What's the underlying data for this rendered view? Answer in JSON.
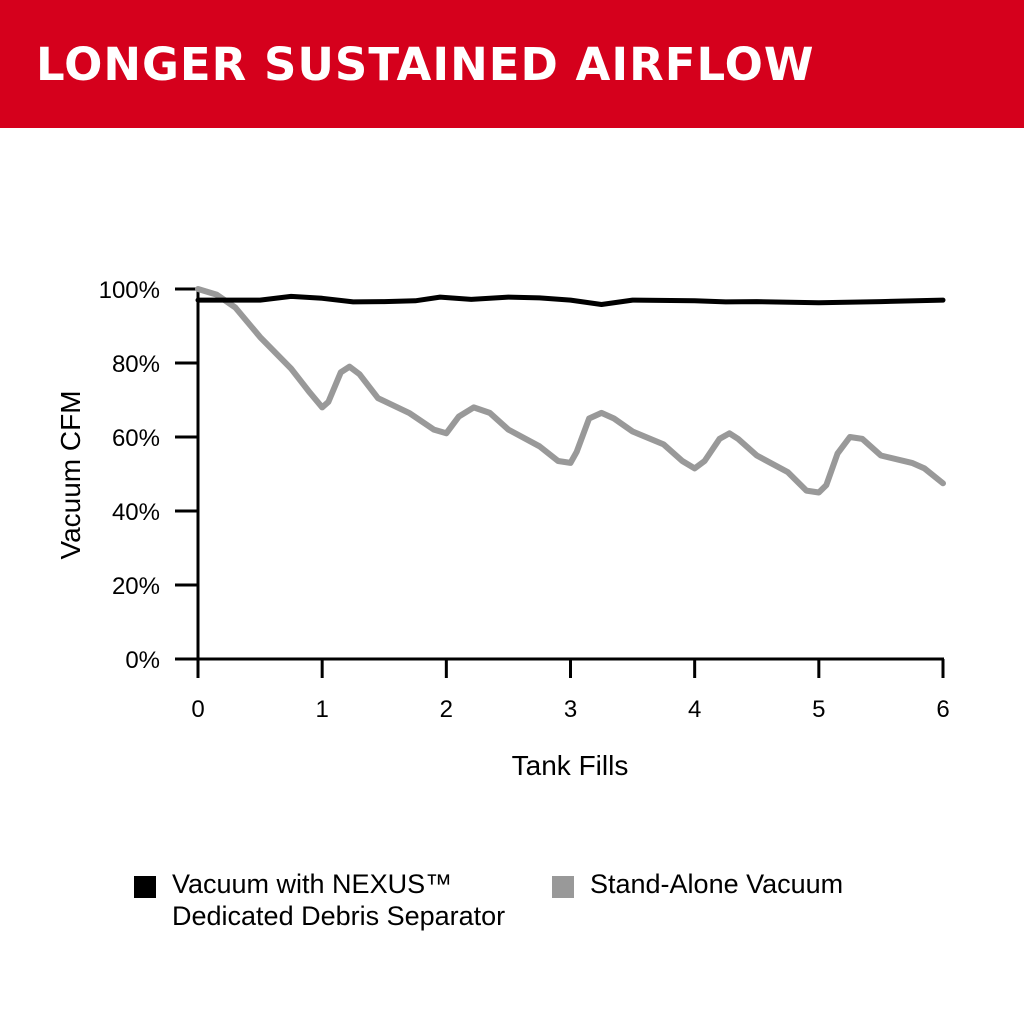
{
  "banner": {
    "title": "LONGER SUSTAINED AIRFLOW",
    "color": "#d5001c"
  },
  "chart_data": {
    "type": "line",
    "title": "LONGER SUSTAINED AIRFLOW",
    "xlabel": "Tank Fills",
    "ylabel": "Vacuum CFM",
    "xlim": [
      0,
      6
    ],
    "ylim": [
      0,
      100
    ],
    "x_ticks": [
      "0",
      "1",
      "2",
      "3",
      "4",
      "5",
      "6"
    ],
    "y_ticks": [
      "0%",
      "20%",
      "40%",
      "60%",
      "80%",
      "100%"
    ],
    "grid": false,
    "legend_placement": "bottom",
    "series": [
      {
        "name": "Vacuum with NEXUS™ Dedicated Debris Separator",
        "color": "#000000",
        "points": [
          [
            0,
            97
          ],
          [
            0.25,
            97
          ],
          [
            0.5,
            97
          ],
          [
            0.75,
            98
          ],
          [
            1.0,
            97.5
          ],
          [
            1.25,
            96.5
          ],
          [
            1.5,
            96.6
          ],
          [
            1.75,
            96.8
          ],
          [
            1.95,
            97.8
          ],
          [
            2.2,
            97.2
          ],
          [
            2.5,
            97.8
          ],
          [
            2.75,
            97.6
          ],
          [
            3.0,
            97.0
          ],
          [
            3.25,
            95.8
          ],
          [
            3.5,
            97.0
          ],
          [
            4.0,
            96.8
          ],
          [
            4.25,
            96.5
          ],
          [
            4.5,
            96.6
          ],
          [
            5.0,
            96.3
          ],
          [
            5.5,
            96.6
          ],
          [
            6.0,
            97.0
          ]
        ]
      },
      {
        "name": "Stand-Alone Vacuum",
        "color": "#999999",
        "points": [
          [
            0,
            100
          ],
          [
            0.15,
            98.5
          ],
          [
            0.3,
            95
          ],
          [
            0.5,
            87
          ],
          [
            0.75,
            78.5
          ],
          [
            0.9,
            72
          ],
          [
            1.0,
            68
          ],
          [
            1.05,
            69.5
          ],
          [
            1.15,
            77.5
          ],
          [
            1.22,
            79
          ],
          [
            1.3,
            77
          ],
          [
            1.45,
            70.5
          ],
          [
            1.7,
            66.5
          ],
          [
            1.9,
            62
          ],
          [
            2.0,
            61
          ],
          [
            2.1,
            65.5
          ],
          [
            2.22,
            68
          ],
          [
            2.35,
            66.5
          ],
          [
            2.5,
            62
          ],
          [
            2.75,
            57.5
          ],
          [
            2.9,
            53.5
          ],
          [
            3.0,
            53
          ],
          [
            3.05,
            56
          ],
          [
            3.15,
            65
          ],
          [
            3.25,
            66.5
          ],
          [
            3.35,
            65
          ],
          [
            3.5,
            61.5
          ],
          [
            3.75,
            58
          ],
          [
            3.9,
            53.5
          ],
          [
            4.0,
            51.5
          ],
          [
            4.08,
            53.5
          ],
          [
            4.2,
            59.5
          ],
          [
            4.28,
            61
          ],
          [
            4.35,
            59.5
          ],
          [
            4.5,
            55
          ],
          [
            4.75,
            50.5
          ],
          [
            4.9,
            45.5
          ],
          [
            5.0,
            45
          ],
          [
            5.06,
            47
          ],
          [
            5.15,
            55.5
          ],
          [
            5.25,
            60
          ],
          [
            5.35,
            59.5
          ],
          [
            5.5,
            55
          ],
          [
            5.75,
            53
          ],
          [
            5.85,
            51.5
          ],
          [
            6.0,
            47.5
          ]
        ]
      }
    ]
  },
  "legend": [
    {
      "label": "Vacuum with NEXUS™\nDedicated Debris Separator",
      "color": "#000000"
    },
    {
      "label": "Stand-Alone Vacuum",
      "color": "#999999"
    }
  ]
}
